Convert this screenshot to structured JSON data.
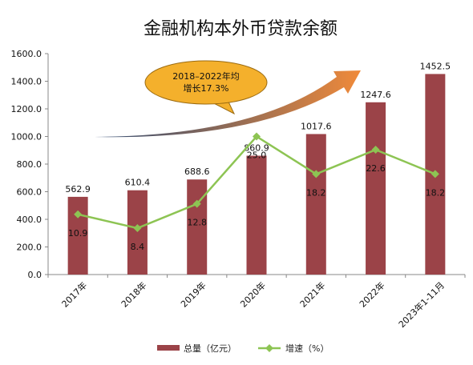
{
  "chart_data": {
    "type": "bar",
    "title": "金融机构本外币贷款余额",
    "categories": [
      "2017年",
      "2018年",
      "2019年",
      "2020年",
      "2021年",
      "2022年",
      "2023年1-11月"
    ],
    "series": [
      {
        "name": "总量（亿元）",
        "kind": "bar",
        "axis": "left",
        "values": [
          562.9,
          610.4,
          688.6,
          860.9,
          1017.6,
          1247.6,
          1452.5
        ],
        "labels": [
          "562.9",
          "610.4",
          "688.6",
          "860.9",
          "1017.6",
          "1247.6",
          "1452.5"
        ]
      },
      {
        "name": "增速（%）",
        "kind": "line",
        "axis": "right",
        "values": [
          10.9,
          8.4,
          12.8,
          25.0,
          18.2,
          22.6,
          18.2
        ],
        "labels": [
          "10.9",
          "8.4",
          "12.8",
          "25.0",
          "18.2",
          "22.6",
          "18.2"
        ]
      }
    ],
    "y_ticks": [
      "0.0",
      "200.0",
      "400.0",
      "600.0",
      "800.0",
      "1000.0",
      "1200.0",
      "1400.0",
      "1600.0"
    ],
    "ylim": [
      0,
      1600
    ],
    "callout": [
      "2018–2022年均",
      "增长17.3%"
    ],
    "grid": false,
    "legend_position": "bottom",
    "colors": {
      "bar": "#9B4348",
      "line": "#8DC453",
      "callout_fill": "#F4B02C",
      "arrow_start": "#2F4B73",
      "arrow_end": "#F08A3A"
    }
  }
}
